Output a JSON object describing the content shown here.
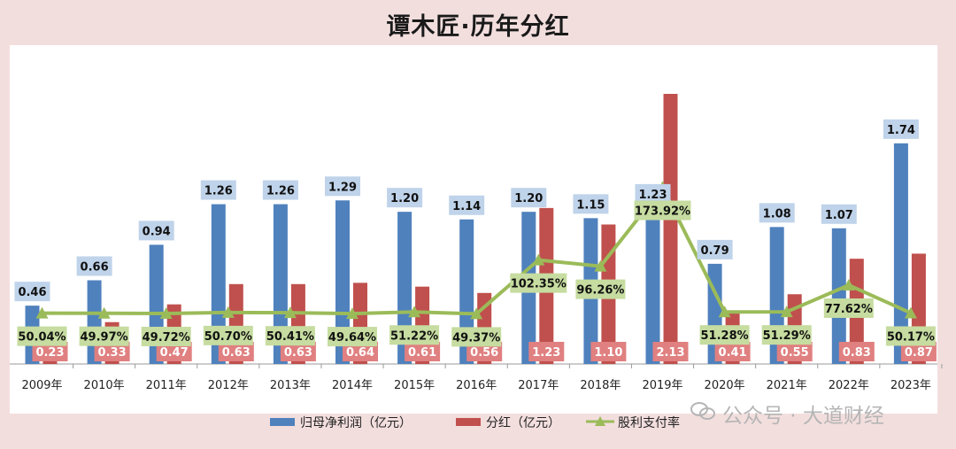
{
  "chart_data": {
    "type": "bar",
    "title": "谭木匠·历年分红",
    "categories": [
      "2009年",
      "2010年",
      "2011年",
      "2012年",
      "2013年",
      "2014年",
      "2015年",
      "2016年",
      "2017年",
      "2018年",
      "2019年",
      "2020年",
      "2021年",
      "2022年",
      "2023年"
    ],
    "series": [
      {
        "name": "归母净利润（亿元）",
        "type": "bar",
        "color": "#4f81bd",
        "values": [
          0.46,
          0.66,
          0.94,
          1.26,
          1.26,
          1.29,
          1.2,
          1.14,
          1.2,
          1.15,
          1.23,
          0.79,
          1.08,
          1.07,
          1.74
        ],
        "labels": [
          "0.46",
          "0.66",
          "0.94",
          "1.26",
          "1.26",
          "1.29",
          "1.20",
          "1.14",
          "1.20",
          "1.15",
          "1.23",
          "0.79",
          "1.08",
          "1.07",
          "1.74"
        ]
      },
      {
        "name": "分红（亿元）",
        "type": "bar",
        "color": "#c0504d",
        "values": [
          0.23,
          0.33,
          0.47,
          0.63,
          0.63,
          0.64,
          0.61,
          0.56,
          1.23,
          1.1,
          2.13,
          0.41,
          0.55,
          0.83,
          0.87
        ],
        "labels": [
          "0.23",
          "0.33",
          "0.47",
          "0.63",
          "0.63",
          "0.64",
          "0.61",
          "0.56",
          "1.23",
          "1.10",
          "2.13",
          "0.41",
          "0.55",
          "0.83",
          "0.87"
        ]
      },
      {
        "name": "股利支付率",
        "type": "line",
        "color": "#9bbb59",
        "unit": "%",
        "values": [
          50.04,
          49.97,
          49.72,
          50.7,
          50.41,
          49.64,
          51.22,
          49.37,
          102.35,
          96.26,
          173.92,
          51.28,
          51.29,
          77.62,
          50.17
        ],
        "labels": [
          "50.04%",
          "49.97%",
          "49.72%",
          "50.70%",
          "50.41%",
          "49.64%",
          "51.22%",
          "49.37%",
          "102.35%",
          "96.26%",
          "173.92%",
          "51.28%",
          "51.29%",
          "77.62%",
          "50.17%"
        ]
      }
    ],
    "ylim": [
      0,
      2.13
    ],
    "ylim_secondary": [
      0,
      320
    ],
    "grid": false,
    "legend_position": "bottom"
  },
  "watermark": {
    "text": "公众号 · 大道财经",
    "icon": "wechat-icon",
    "color": "#b5b5b5"
  }
}
